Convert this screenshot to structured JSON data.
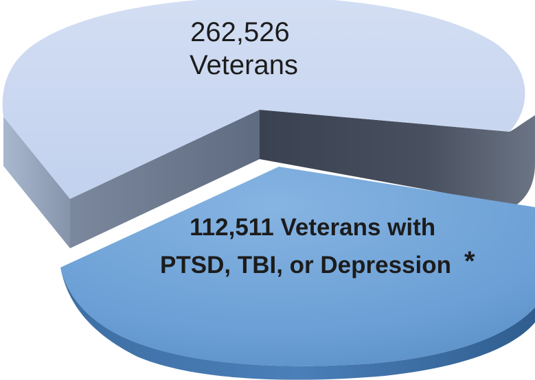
{
  "chart_data": {
    "type": "pie",
    "title": "",
    "slices": [
      {
        "label_line1": "262,526",
        "label_line2": "Veterans",
        "value": 262526,
        "color": "#c6d4ef"
      },
      {
        "label_line1": "112,511 Veterans with",
        "label_line2": "PTSD, TBI, or Depression",
        "footnote_marker": "*",
        "value": 112511,
        "color": "#6fa3d8",
        "exploded": true
      }
    ]
  }
}
